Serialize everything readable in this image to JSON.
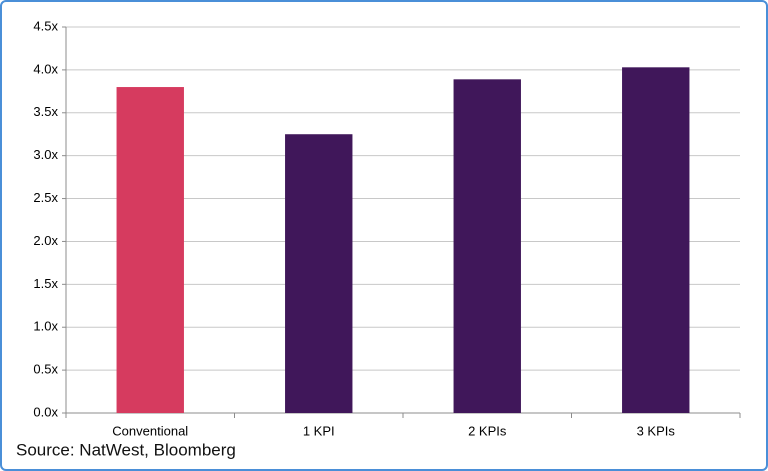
{
  "chart_data": {
    "type": "bar",
    "categories": [
      "Conventional",
      "1 KPI",
      "2 KPIs",
      "3 KPIs"
    ],
    "values": [
      3.8,
      3.25,
      3.89,
      4.03
    ],
    "colors": [
      "#d63b5f",
      "#40175a",
      "#40175a",
      "#40175a"
    ],
    "ylim": [
      0,
      4.5
    ],
    "yticks": [
      {
        "value": 0,
        "label": "0.0x"
      },
      {
        "value": 0.5,
        "label": "0.5x"
      },
      {
        "value": 1,
        "label": "1.0x"
      },
      {
        "value": 1.5,
        "label": "1.5x"
      },
      {
        "value": 2,
        "label": "2.0x"
      },
      {
        "value": 2.5,
        "label": "2.5x"
      },
      {
        "value": 3,
        "label": "3.0x"
      },
      {
        "value": 3.5,
        "label": "3.5x"
      },
      {
        "value": 4,
        "label": "4.0x"
      },
      {
        "value": 4.5,
        "label": "4.5x"
      }
    ],
    "grid": true,
    "source": "Source: NatWest, Bloomberg"
  }
}
